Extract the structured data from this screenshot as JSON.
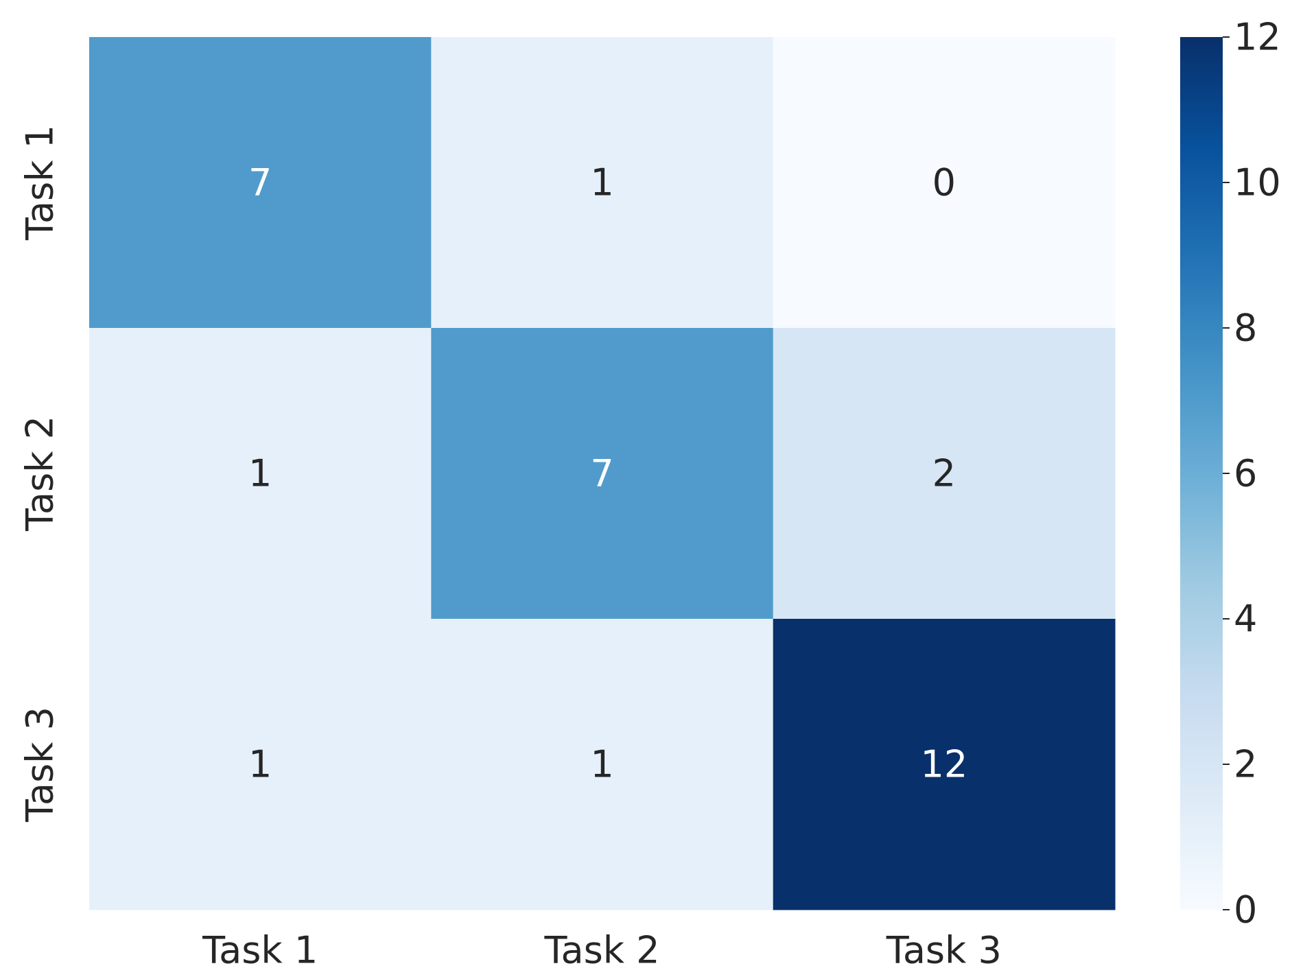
{
  "chart_data": {
    "type": "heatmap",
    "title": "",
    "xlabel": "",
    "ylabel": "",
    "x_categories": [
      "Task 1",
      "Task 2",
      "Task 3"
    ],
    "y_categories": [
      "Task 1",
      "Task 2",
      "Task 3"
    ],
    "values": [
      [
        7,
        1,
        0
      ],
      [
        1,
        7,
        2
      ],
      [
        1,
        1,
        12
      ]
    ],
    "colormap": "Blues",
    "colorbar": {
      "range": [
        0,
        12
      ],
      "ticks": [
        "0",
        "2",
        "4",
        "6",
        "8",
        "10",
        "12"
      ]
    },
    "grid": false,
    "annotated": true
  }
}
